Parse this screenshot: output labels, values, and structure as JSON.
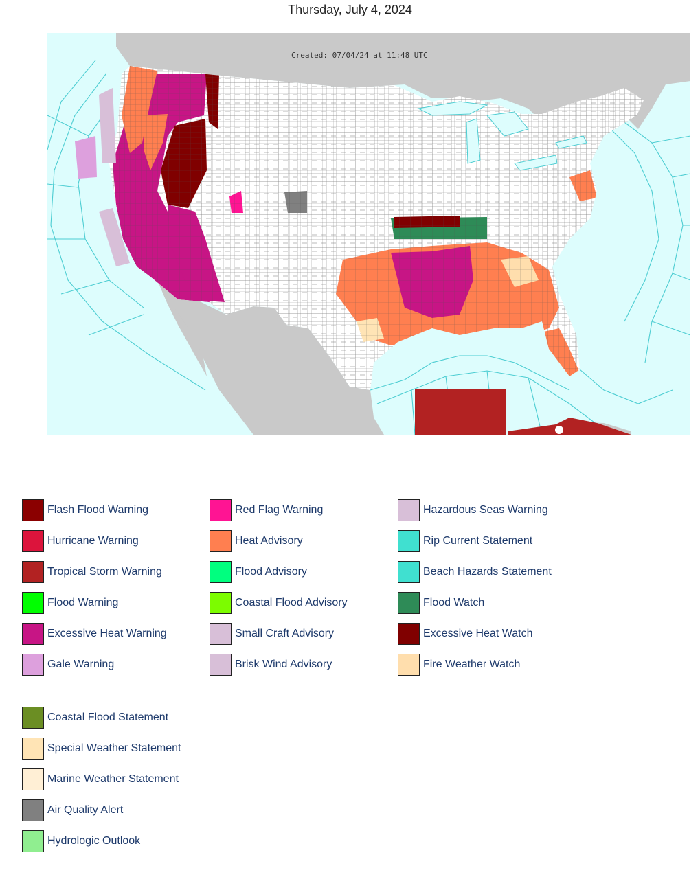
{
  "header": {
    "date": "Thursday, July 4, 2024"
  },
  "map": {
    "created_text": "Created: 07/04/24 at 11:48 UTC",
    "colors": {
      "ocean": "#ddfdfd",
      "land": "#c9c9c9",
      "us_land": "#ffffff",
      "marine_lines": "#4ccdd2",
      "county_lines": "#9a9a9a"
    }
  },
  "legend": {
    "columns": [
      [
        {
          "label": "Flash Flood Warning",
          "color": "#8b0000"
        },
        {
          "label": "Hurricane Warning",
          "color": "#dc143c"
        },
        {
          "label": "Tropical Storm Warning",
          "color": "#b22222"
        },
        {
          "label": "Flood Warning",
          "color": "#00ff00"
        },
        {
          "label": "Excessive Heat Warning",
          "color": "#c71585"
        },
        {
          "label": "Gale Warning",
          "color": "#dda0dd"
        }
      ],
      [
        {
          "label": "Red Flag Warning",
          "color": "#ff1493"
        },
        {
          "label": "Heat Advisory",
          "color": "#ff7f50"
        },
        {
          "label": "Flood Advisory",
          "color": "#00ff7f"
        },
        {
          "label": "Coastal Flood Advisory",
          "color": "#7cfc00"
        },
        {
          "label": "Small Craft Advisory",
          "color": "#d8bfd8"
        },
        {
          "label": "Brisk Wind Advisory",
          "color": "#d8bfd8"
        }
      ],
      [
        {
          "label": "Hazardous Seas Warning",
          "color": "#d8bfd8"
        },
        {
          "label": "Rip Current Statement",
          "color": "#40e0d0"
        },
        {
          "label": "Beach Hazards Statement",
          "color": "#40e0d0"
        },
        {
          "label": "Flood Watch",
          "color": "#2e8b57"
        },
        {
          "label": "Excessive Heat Watch",
          "color": "#800000"
        },
        {
          "label": "Fire Weather Watch",
          "color": "#ffdead"
        }
      ]
    ],
    "extra": [
      {
        "label": "Coastal Flood Statement",
        "color": "#6b8e23"
      },
      {
        "label": "Special Weather Statement",
        "color": "#ffe4b5"
      },
      {
        "label": "Marine Weather Statement",
        "color": "#ffefd5"
      },
      {
        "label": "Air Quality Alert",
        "color": "#808080"
      },
      {
        "label": "Hydrologic Outlook",
        "color": "#90ee90"
      }
    ]
  }
}
